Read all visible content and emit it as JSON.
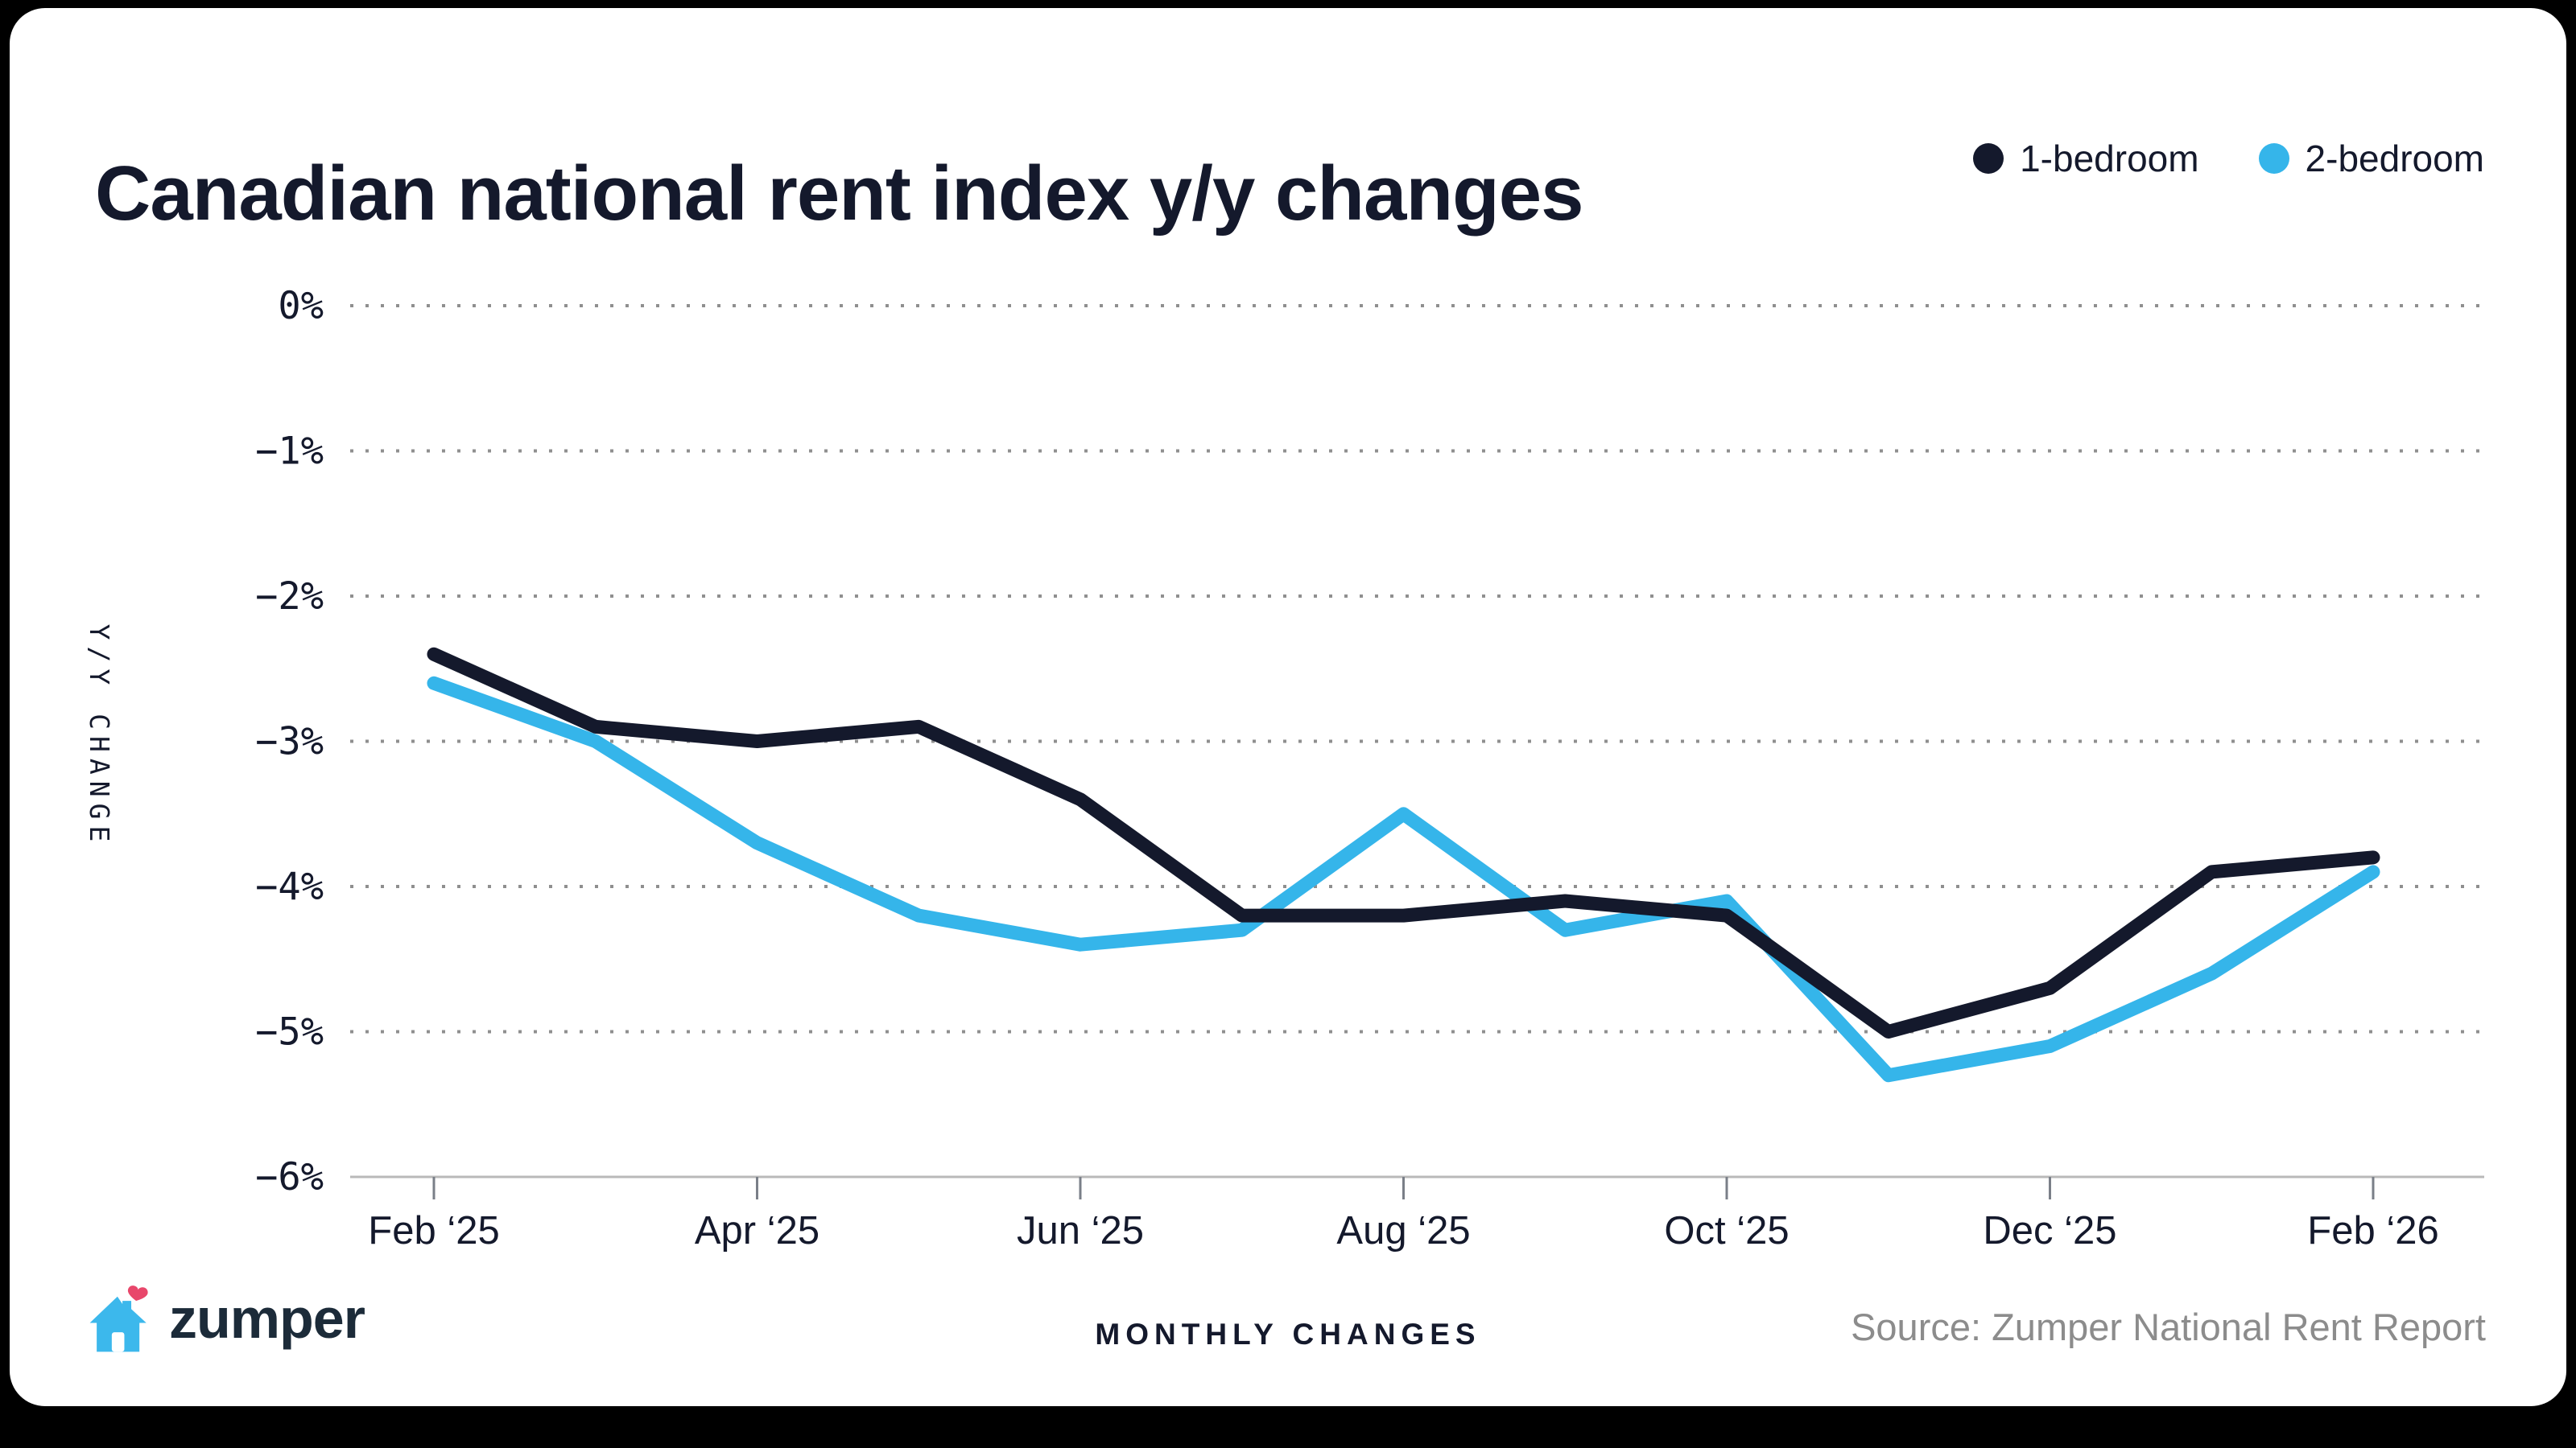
{
  "header": {
    "title": "Canadian national rent index y/y changes",
    "legend": [
      {
        "label": "1-bedroom",
        "color": "#14192c"
      },
      {
        "label": "2-bedroom",
        "color": "#35b5ea"
      }
    ]
  },
  "chart_data": {
    "type": "line",
    "title": "Canadian national rent index y/y changes",
    "ylabel": "Y/Y CHANGE",
    "xlabel": "MONTHLY CHANGES",
    "ylim": [
      -6,
      0
    ],
    "grid": "horizontal-dotted",
    "legend_position": "top-right",
    "categories": [
      "Feb ‘25",
      "Mar ‘25",
      "Apr ‘25",
      "May ‘25",
      "Jun ‘25",
      "Jul ‘25",
      "Aug ‘25",
      "Sep ‘25",
      "Oct ‘25",
      "Nov ‘25",
      "Dec ‘25",
      "Jan ‘26",
      "Feb ‘26"
    ],
    "xtick_labels": [
      "Feb ‘25",
      "Apr ‘25",
      "Jun ‘25",
      "Aug ‘25",
      "Oct ‘25",
      "Dec ‘25",
      "Feb ‘26"
    ],
    "ytick_labels": [
      "0%",
      "−1%",
      "−2%",
      "−3%",
      "−4%",
      "−5%",
      "−6%"
    ],
    "series": [
      {
        "name": "1-bedroom",
        "color": "#14192c",
        "values": [
          -2.4,
          -2.9,
          -3.0,
          -2.9,
          -3.4,
          -4.2,
          -4.2,
          -4.1,
          -4.2,
          -5.0,
          -4.7,
          -3.9,
          -3.8
        ]
      },
      {
        "name": "2-bedroom",
        "color": "#35b5ea",
        "values": [
          -2.6,
          -3.0,
          -3.7,
          -4.2,
          -4.4,
          -4.3,
          -3.5,
          -4.3,
          -4.1,
          -5.3,
          -5.1,
          -4.6,
          -3.9
        ]
      }
    ]
  },
  "footer": {
    "brand": "zumper",
    "caption": "MONTHLY CHANGES",
    "source": "Source: Zumper National Rent Report"
  },
  "colors": {
    "background": "#000000",
    "card": "#ffffff",
    "navy": "#14192c",
    "blue": "#35b5ea",
    "grid": "#8f8f8f",
    "axis": "#b9b9b9",
    "source_text": "#8c8c8c",
    "logo_blue": "#3cb8ec",
    "logo_heart": "#e8476b"
  }
}
